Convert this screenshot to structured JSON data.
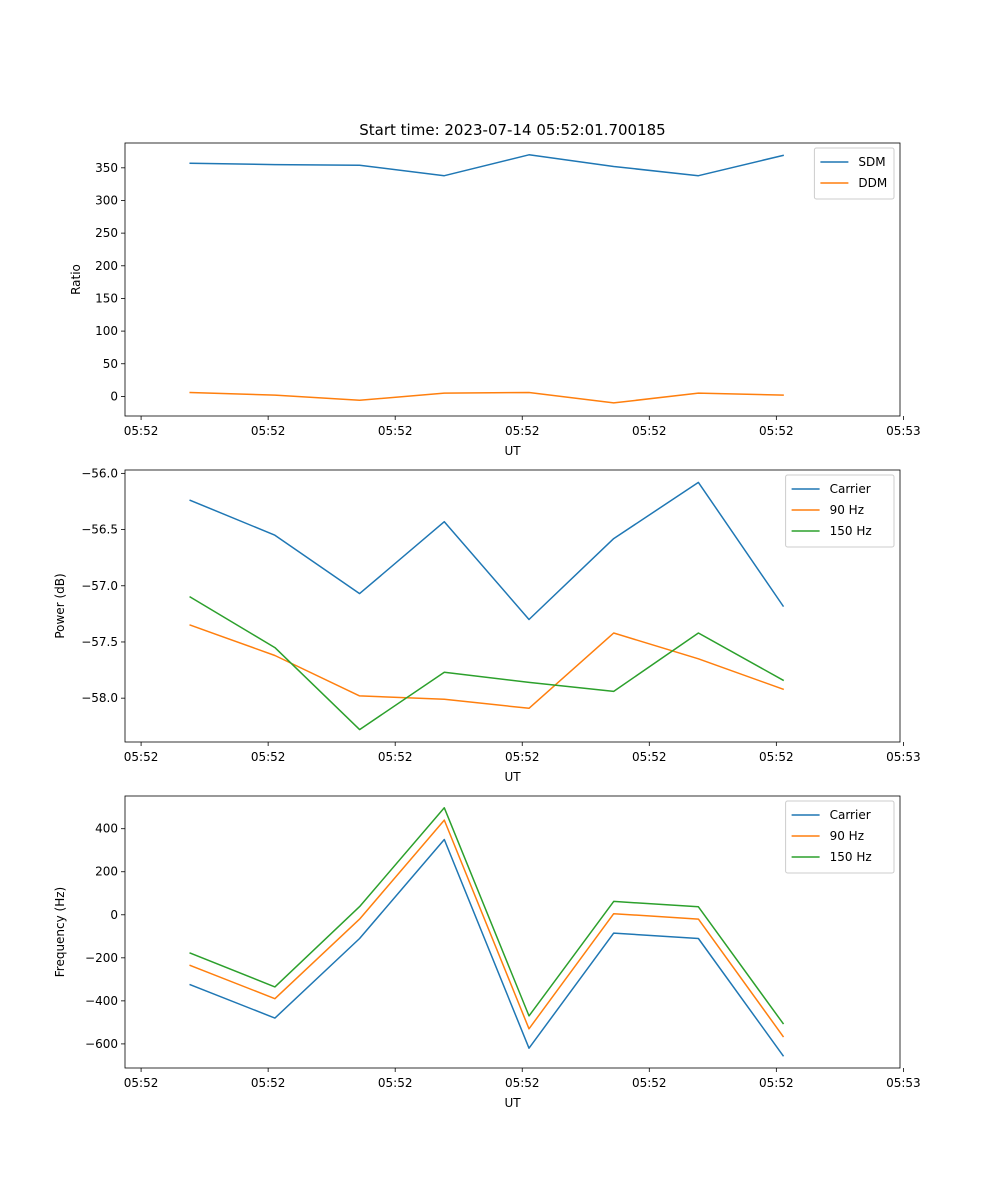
{
  "chart_data": [
    {
      "type": "line",
      "title": "Start time: 2023-07-14 05:52:01.700185",
      "xlabel": "UT",
      "ylabel": "Ratio",
      "ylim": [
        -30,
        388
      ],
      "yticks": [
        0,
        50,
        100,
        150,
        200,
        250,
        300,
        350
      ],
      "yticklabels": [
        "0",
        "50",
        "100",
        "150",
        "200",
        "250",
        "300",
        "350"
      ],
      "xlim": [
        -0.77,
        8.38
      ],
      "xticks": [
        -0.58,
        0.92,
        2.42,
        3.92,
        5.42,
        6.92,
        8.42
      ],
      "xticklabels": [
        "05:52",
        "05:52",
        "05:52",
        "05:52",
        "05:52",
        "05:52",
        "05:53"
      ],
      "x": [
        0,
        1,
        2,
        3,
        4,
        5,
        6,
        7
      ],
      "legend_location": "upper right",
      "series": [
        {
          "name": "SDM",
          "color": "#1f77b4",
          "values": [
            357,
            355,
            354,
            338,
            370,
            352,
            338,
            369
          ]
        },
        {
          "name": "DDM",
          "color": "#ff7f0e",
          "values": [
            6,
            2,
            -6,
            5,
            6,
            -10,
            5,
            2
          ]
        }
      ]
    },
    {
      "type": "line",
      "title": "",
      "xlabel": "UT",
      "ylabel": "Power (dB)",
      "ylim": [
        -58.39,
        -55.97
      ],
      "yticks": [
        -58.0,
        -57.5,
        -57.0,
        -56.5,
        -56.0
      ],
      "yticklabels": [
        "−58.0",
        "−57.5",
        "−57.0",
        "−56.5",
        "−56.0"
      ],
      "xlim": [
        -0.77,
        8.38
      ],
      "xticks": [
        -0.58,
        0.92,
        2.42,
        3.92,
        5.42,
        6.92,
        8.42
      ],
      "xticklabels": [
        "05:52",
        "05:52",
        "05:52",
        "05:52",
        "05:52",
        "05:52",
        "05:53"
      ],
      "x": [
        0,
        1,
        2,
        3,
        4,
        5,
        6,
        7
      ],
      "legend_location": "upper right",
      "series": [
        {
          "name": "Carrier",
          "color": "#1f77b4",
          "values": [
            -56.24,
            -56.55,
            -57.07,
            -56.43,
            -57.3,
            -56.58,
            -56.08,
            -57.18
          ]
        },
        {
          "name": "90 Hz",
          "color": "#ff7f0e",
          "values": [
            -57.35,
            -57.62,
            -57.98,
            -58.01,
            -58.09,
            -57.42,
            -57.65,
            -57.92
          ]
        },
        {
          "name": "150 Hz",
          "color": "#2ca02c",
          "values": [
            -57.1,
            -57.55,
            -58.28,
            -57.77,
            -57.86,
            -57.94,
            -57.42,
            -57.84
          ]
        }
      ]
    },
    {
      "type": "line",
      "title": "",
      "xlabel": "UT",
      "ylabel": "Frequency (Hz)",
      "ylim": [
        -712,
        552
      ],
      "yticks": [
        -600,
        -400,
        -200,
        0,
        200,
        400
      ],
      "yticklabels": [
        "−600",
        "−400",
        "−200",
        "0",
        "200",
        "400"
      ],
      "xlim": [
        -0.77,
        8.38
      ],
      "xticks": [
        -0.58,
        0.92,
        2.42,
        3.92,
        5.42,
        6.92,
        8.42
      ],
      "xticklabels": [
        "05:52",
        "05:52",
        "05:52",
        "05:52",
        "05:52",
        "05:52",
        "05:53"
      ],
      "x": [
        0,
        1,
        2,
        3,
        4,
        5,
        6,
        7
      ],
      "legend_location": "upper right",
      "series": [
        {
          "name": "Carrier",
          "color": "#1f77b4",
          "values": [
            -325,
            -480,
            -110,
            350,
            -620,
            -85,
            -110,
            -655
          ]
        },
        {
          "name": "90 Hz",
          "color": "#ff7f0e",
          "values": [
            -235,
            -390,
            -20,
            440,
            -530,
            5,
            -20,
            -565
          ]
        },
        {
          "name": "150 Hz",
          "color": "#2ca02c",
          "values": [
            -178,
            -335,
            38,
            497,
            -470,
            62,
            37,
            -505
          ]
        }
      ]
    }
  ]
}
